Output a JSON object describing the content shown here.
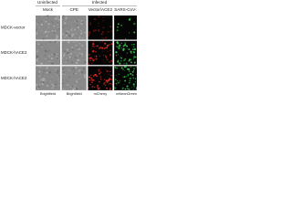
{
  "figure": {
    "groups": [
      "Uninfected",
      "Infected"
    ],
    "columns": [
      "Mock",
      "CPE",
      "Vector/ACE2",
      "SARS-CoV-2"
    ],
    "rows": [
      "MDCK-vector",
      "MDCK-hACE2",
      "MDCK-hACE2"
    ],
    "channels": [
      "Brightfield",
      "Brightfield",
      "mCherry",
      "mNeonGreen"
    ]
  }
}
